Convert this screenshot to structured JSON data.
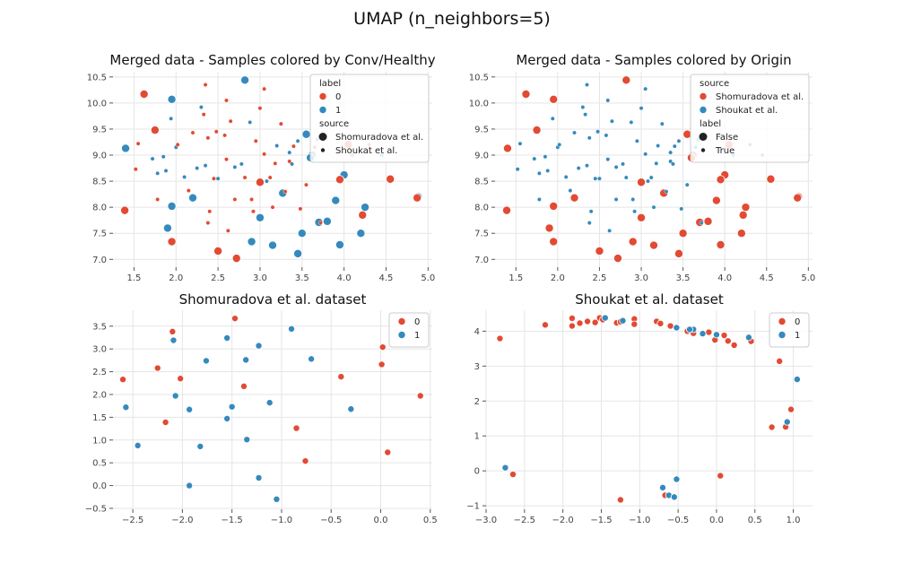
{
  "figure_title": "UMAP (n_neighbors=5)",
  "colors": {
    "red": "#E24A33",
    "blue": "#348ABD",
    "grid": "#e5e5e5"
  },
  "chart_data": [
    {
      "id": "p1",
      "type": "scatter",
      "title": "Merged data - Samples colored by Conv/Healthy",
      "xlim": [
        1.25,
        5.05
      ],
      "ylim": [
        6.85,
        10.6
      ],
      "xticks": [
        1.5,
        2.0,
        2.5,
        3.0,
        3.5,
        4.0,
        4.5,
        5.0
      ],
      "xtick_labels": [
        "1.5",
        "2.0",
        "2.5",
        "3.0",
        "3.5",
        "4.0",
        "4.5",
        "5.0"
      ],
      "yticks": [
        7.0,
        7.5,
        8.0,
        8.5,
        9.0,
        9.5,
        10.0,
        10.5
      ],
      "ytick_labels": [
        "7.0",
        "7.5",
        "8.0",
        "8.5",
        "9.0",
        "9.5",
        "10.0",
        "10.5"
      ],
      "color_key": "label",
      "legend": {
        "placement": "upper-right",
        "sections": [
          {
            "title": "label",
            "entries": [
              {
                "text": "0",
                "marker": "red"
              },
              {
                "text": "1",
                "marker": "blue"
              }
            ]
          },
          {
            "title": "source",
            "entries": [
              {
                "text": "Shomuradova et al.",
                "marker": "big"
              },
              {
                "text": "Shoukat et al.",
                "marker": "small"
              }
            ]
          }
        ]
      },
      "points_ref": "merged_points"
    },
    {
      "id": "p2",
      "type": "scatter",
      "title": "Merged data - Samples colored by Origin",
      "xlim": [
        1.25,
        5.05
      ],
      "ylim": [
        6.85,
        10.6
      ],
      "xticks": [
        1.5,
        2.0,
        2.5,
        3.0,
        3.5,
        4.0,
        4.5,
        5.0
      ],
      "xtick_labels": [
        "1.5",
        "2.0",
        "2.5",
        "3.0",
        "3.5",
        "4.0",
        "4.5",
        "5.0"
      ],
      "yticks": [
        7.0,
        7.5,
        8.0,
        8.5,
        9.0,
        9.5,
        10.0,
        10.5
      ],
      "ytick_labels": [
        "7.0",
        "7.5",
        "8.0",
        "8.5",
        "9.0",
        "9.5",
        "10.0",
        "10.5"
      ],
      "color_key": "source",
      "legend": {
        "placement": "upper-right",
        "sections": [
          {
            "title": "source",
            "entries": [
              {
                "text": "Shomuradova et al.",
                "marker": "red"
              },
              {
                "text": "Shoukat et al.",
                "marker": "blue"
              }
            ]
          },
          {
            "title": "label",
            "entries": [
              {
                "text": "False",
                "marker": "big"
              },
              {
                "text": "True",
                "marker": "small"
              }
            ]
          }
        ]
      },
      "points_ref": "merged_points"
    },
    {
      "id": "p3",
      "type": "scatter",
      "title": "Shomuradova et al. dataset",
      "xlim": [
        -2.7,
        0.52
      ],
      "ylim": [
        -0.52,
        3.85
      ],
      "xticks": [
        -2.5,
        -2.0,
        -1.5,
        -1.0,
        -0.5,
        0.0,
        0.5
      ],
      "xtick_labels": [
        "−2.5",
        "−2.0",
        "−1.5",
        "−1.0",
        "−0.5",
        "0.0",
        "0.5"
      ],
      "yticks": [
        -0.5,
        0.0,
        0.5,
        1.0,
        1.5,
        2.0,
        2.5,
        3.0,
        3.5
      ],
      "ytick_labels": [
        "−0.5",
        "0.0",
        "0.5",
        "1.0",
        "1.5",
        "2.0",
        "2.5",
        "3.0",
        "3.5"
      ],
      "legend": {
        "placement": "upper-right",
        "sections": [
          {
            "title": "",
            "entries": [
              {
                "text": "0",
                "marker": "red"
              },
              {
                "text": "1",
                "marker": "blue"
              }
            ]
          }
        ]
      },
      "series": [
        {
          "name": "0",
          "color": "red",
          "points": [
            [
              -1.47,
              3.67
            ],
            [
              -2.1,
              3.38
            ],
            [
              -2.25,
              2.58
            ],
            [
              -2.02,
              2.35
            ],
            [
              -2.6,
              2.33
            ],
            [
              -1.38,
              2.18
            ],
            [
              -2.17,
              1.39
            ],
            [
              -0.4,
              2.39
            ],
            [
              0.02,
              3.04
            ],
            [
              0.01,
              2.66
            ],
            [
              0.4,
              1.97
            ],
            [
              -0.85,
              1.26
            ],
            [
              -0.76,
              0.54
            ],
            [
              0.07,
              0.73
            ]
          ]
        },
        {
          "name": "1",
          "color": "blue",
          "points": [
            [
              -2.09,
              3.19
            ],
            [
              -1.76,
              2.74
            ],
            [
              -1.55,
              3.24
            ],
            [
              -1.36,
              2.76
            ],
            [
              -1.23,
              3.07
            ],
            [
              -0.9,
              3.44
            ],
            [
              -0.7,
              2.78
            ],
            [
              -2.07,
              1.97
            ],
            [
              -2.57,
              1.72
            ],
            [
              -1.93,
              1.67
            ],
            [
              -1.5,
              1.73
            ],
            [
              -1.55,
              1.47
            ],
            [
              -1.12,
              1.82
            ],
            [
              -0.3,
              1.68
            ],
            [
              -2.45,
              0.88
            ],
            [
              -1.82,
              0.86
            ],
            [
              -1.35,
              1.01
            ],
            [
              -1.23,
              0.17
            ],
            [
              -1.93,
              0.0
            ],
            [
              -1.05,
              -0.3
            ]
          ]
        }
      ]
    },
    {
      "id": "p4",
      "type": "scatter",
      "title": "Shoukat et al. dataset",
      "xlim": [
        -3.0,
        1.25
      ],
      "ylim": [
        -1.1,
        4.6
      ],
      "xticks": [
        -3.0,
        -2.5,
        -2.0,
        -1.5,
        -1.0,
        -0.5,
        0.0,
        0.5,
        1.0
      ],
      "xtick_labels": [
        "−3.0",
        "−2.5",
        "−2.0",
        "−1.5",
        "−1.0",
        "−0.5",
        "0.0",
        "0.5",
        "1.0"
      ],
      "yticks": [
        -1,
        0,
        1,
        2,
        3,
        4
      ],
      "ytick_labels": [
        "−1",
        "0",
        "1",
        "2",
        "3",
        "4"
      ],
      "legend": {
        "placement": "upper-right",
        "sections": [
          {
            "title": "",
            "entries": [
              {
                "text": "0",
                "marker": "red"
              },
              {
                "text": "1",
                "marker": "blue"
              }
            ]
          }
        ]
      },
      "series": [
        {
          "name": "0",
          "color": "red",
          "points": [
            [
              -2.82,
              3.79
            ],
            [
              -2.23,
              4.18
            ],
            [
              -1.88,
              4.37
            ],
            [
              -1.88,
              4.15
            ],
            [
              -1.78,
              4.23
            ],
            [
              -1.68,
              4.28
            ],
            [
              -1.58,
              4.25
            ],
            [
              -1.52,
              4.38
            ],
            [
              -1.48,
              4.33
            ],
            [
              -1.3,
              4.24
            ],
            [
              -1.25,
              4.27
            ],
            [
              -1.07,
              4.35
            ],
            [
              -1.07,
              4.2
            ],
            [
              -0.78,
              4.28
            ],
            [
              -0.73,
              4.22
            ],
            [
              -0.6,
              4.15
            ],
            [
              -0.38,
              4.0
            ],
            [
              -0.3,
              3.94
            ],
            [
              -0.1,
              3.97
            ],
            [
              -0.02,
              3.75
            ],
            [
              0.1,
              3.88
            ],
            [
              0.15,
              3.72
            ],
            [
              0.23,
              3.6
            ],
            [
              0.45,
              3.71
            ],
            [
              0.82,
              3.14
            ],
            [
              0.72,
              1.25
            ],
            [
              0.9,
              1.26
            ],
            [
              0.97,
              1.76
            ],
            [
              0.05,
              -0.14
            ],
            [
              -2.65,
              -0.1
            ],
            [
              -1.25,
              -0.83
            ],
            [
              -0.67,
              -0.7
            ]
          ]
        },
        {
          "name": "1",
          "color": "blue",
          "points": [
            [
              -1.45,
              4.38
            ],
            [
              -1.22,
              4.3
            ],
            [
              -0.52,
              4.1
            ],
            [
              -0.3,
              4.05
            ],
            [
              -0.35,
              4.05
            ],
            [
              -0.18,
              3.93
            ],
            [
              0.0,
              3.9
            ],
            [
              0.42,
              3.82
            ],
            [
              0.92,
              1.4
            ],
            [
              1.05,
              2.62
            ],
            [
              -2.75,
              0.09
            ],
            [
              -0.52,
              -0.24
            ],
            [
              -0.7,
              -0.48
            ],
            [
              -0.62,
              -0.7
            ],
            [
              -0.55,
              -0.75
            ]
          ]
        }
      ]
    }
  ],
  "merged_points": [
    [
      1.62,
      10.17,
      "0",
      "Shom"
    ],
    [
      1.95,
      10.07,
      "1",
      "Shom"
    ],
    [
      2.82,
      10.44,
      "1",
      "Shom"
    ],
    [
      1.75,
      9.48,
      "0",
      "Shom"
    ],
    [
      1.4,
      9.13,
      "1",
      "Shom"
    ],
    [
      1.39,
      7.94,
      "0",
      "Shom"
    ],
    [
      1.95,
      8.02,
      "1",
      "Shom"
    ],
    [
      1.9,
      7.6,
      "1",
      "Shom"
    ],
    [
      1.95,
      7.34,
      "0",
      "Shom"
    ],
    [
      2.2,
      8.18,
      "1",
      "Shom"
    ],
    [
      2.5,
      7.16,
      "0",
      "Shom"
    ],
    [
      2.72,
      7.02,
      "0",
      "Shom"
    ],
    [
      2.9,
      7.34,
      "1",
      "Shom"
    ],
    [
      3.0,
      7.8,
      "1",
      "Shom"
    ],
    [
      3.15,
      7.27,
      "1",
      "Shom"
    ],
    [
      3.27,
      8.27,
      "1",
      "Shom"
    ],
    [
      3.0,
      8.48,
      "0",
      "Shom"
    ],
    [
      3.45,
      7.11,
      "1",
      "Shom"
    ],
    [
      3.5,
      7.5,
      "1",
      "Shom"
    ],
    [
      3.7,
      7.71,
      "1",
      "Shom"
    ],
    [
      3.8,
      7.73,
      "1",
      "Shom"
    ],
    [
      3.9,
      8.13,
      "1",
      "Shom"
    ],
    [
      4.0,
      8.62,
      "1",
      "Shom"
    ],
    [
      3.95,
      8.53,
      "0",
      "Shom"
    ],
    [
      4.2,
      7.5,
      "1",
      "Shom"
    ],
    [
      4.22,
      7.85,
      "0",
      "Shom"
    ],
    [
      4.25,
      8.0,
      "1",
      "Shom"
    ],
    [
      3.95,
      7.28,
      "1",
      "Shom"
    ],
    [
      4.55,
      8.54,
      "0",
      "Shom"
    ],
    [
      4.88,
      8.2,
      "1",
      "Shom"
    ],
    [
      4.87,
      8.18,
      "0",
      "Shom"
    ],
    [
      3.55,
      9.4,
      "1",
      "Shom"
    ],
    [
      3.62,
      9.0,
      "1",
      "Shom"
    ],
    [
      4.05,
      9.2,
      "0",
      "Shom"
    ],
    [
      3.6,
      8.95,
      "1",
      "Shom"
    ],
    [
      1.52,
      8.73,
      "0",
      "Shouk"
    ],
    [
      1.55,
      9.22,
      "0",
      "Shouk"
    ],
    [
      1.72,
      8.93,
      "1",
      "Shouk"
    ],
    [
      1.78,
      8.65,
      "1",
      "Shouk"
    ],
    [
      1.78,
      8.15,
      "0",
      "Shouk"
    ],
    [
      1.85,
      8.97,
      "1",
      "Shouk"
    ],
    [
      1.88,
      8.7,
      "1",
      "Shouk"
    ],
    [
      1.94,
      9.7,
      "1",
      "Shouk"
    ],
    [
      2.0,
      9.15,
      "1",
      "Shouk"
    ],
    [
      2.02,
      9.2,
      "0",
      "Shouk"
    ],
    [
      2.1,
      8.58,
      "1",
      "Shouk"
    ],
    [
      2.15,
      8.32,
      "0",
      "Shouk"
    ],
    [
      2.2,
      9.43,
      "0",
      "Shouk"
    ],
    [
      2.25,
      8.75,
      "1",
      "Shouk"
    ],
    [
      2.3,
      9.92,
      "1",
      "Shouk"
    ],
    [
      2.33,
      9.78,
      "0",
      "Shouk"
    ],
    [
      2.35,
      10.35,
      "0",
      "Shouk"
    ],
    [
      2.35,
      8.8,
      "1",
      "Shouk"
    ],
    [
      2.38,
      9.33,
      "0",
      "Shouk"
    ],
    [
      2.38,
      7.7,
      "0",
      "Shouk"
    ],
    [
      2.4,
      7.92,
      "0",
      "Shouk"
    ],
    [
      2.45,
      8.55,
      "0",
      "Shouk"
    ],
    [
      2.48,
      9.45,
      "0",
      "Shouk"
    ],
    [
      2.5,
      8.55,
      "1",
      "Shouk"
    ],
    [
      2.58,
      9.38,
      "0",
      "Shouk"
    ],
    [
      2.6,
      10.05,
      "0",
      "Shouk"
    ],
    [
      2.6,
      8.92,
      "0",
      "Shouk"
    ],
    [
      2.62,
      7.55,
      "0",
      "Shouk"
    ],
    [
      2.65,
      9.65,
      "0",
      "Shouk"
    ],
    [
      2.7,
      8.77,
      "1",
      "Shouk"
    ],
    [
      2.7,
      8.15,
      "0",
      "Shouk"
    ],
    [
      2.78,
      8.83,
      "1",
      "Shouk"
    ],
    [
      2.82,
      8.57,
      "0",
      "Shouk"
    ],
    [
      2.88,
      9.63,
      "1",
      "Shouk"
    ],
    [
      2.9,
      8.15,
      "0",
      "Shouk"
    ],
    [
      2.92,
      7.92,
      "0",
      "Shouk"
    ],
    [
      2.95,
      9.27,
      "0",
      "Shouk"
    ],
    [
      3.0,
      9.9,
      "0",
      "Shouk"
    ],
    [
      3.05,
      10.27,
      "0",
      "Shouk"
    ],
    [
      3.05,
      9.02,
      "0",
      "Shouk"
    ],
    [
      3.08,
      8.5,
      "1",
      "Shouk"
    ],
    [
      3.12,
      8.57,
      "0",
      "Shouk"
    ],
    [
      3.15,
      8.0,
      "0",
      "Shouk"
    ],
    [
      3.18,
      8.84,
      "0",
      "Shouk"
    ],
    [
      3.2,
      9.18,
      "1",
      "Shouk"
    ],
    [
      3.25,
      9.6,
      "0",
      "Shouk"
    ],
    [
      3.3,
      8.3,
      "0",
      "Shouk"
    ],
    [
      3.35,
      9.05,
      "1",
      "Shouk"
    ],
    [
      3.35,
      8.88,
      "0",
      "Shouk"
    ],
    [
      3.38,
      8.83,
      "1",
      "Shouk"
    ],
    [
      3.4,
      9.17,
      "0",
      "Shouk"
    ],
    [
      3.45,
      9.27,
      "1",
      "Shouk"
    ],
    [
      3.48,
      7.97,
      "0",
      "Shouk"
    ],
    [
      3.55,
      8.43,
      "0",
      "Shouk"
    ],
    [
      3.65,
      9.15,
      "0",
      "Shouk"
    ],
    [
      3.68,
      9.3,
      "1",
      "Shouk"
    ],
    [
      3.72,
      7.7,
      "0",
      "Shouk"
    ],
    [
      4.1,
      9.0,
      "0",
      "Shouk"
    ],
    [
      4.3,
      9.2,
      "0",
      "Shouk"
    ],
    [
      4.45,
      9.0,
      "1",
      "Shouk"
    ]
  ]
}
